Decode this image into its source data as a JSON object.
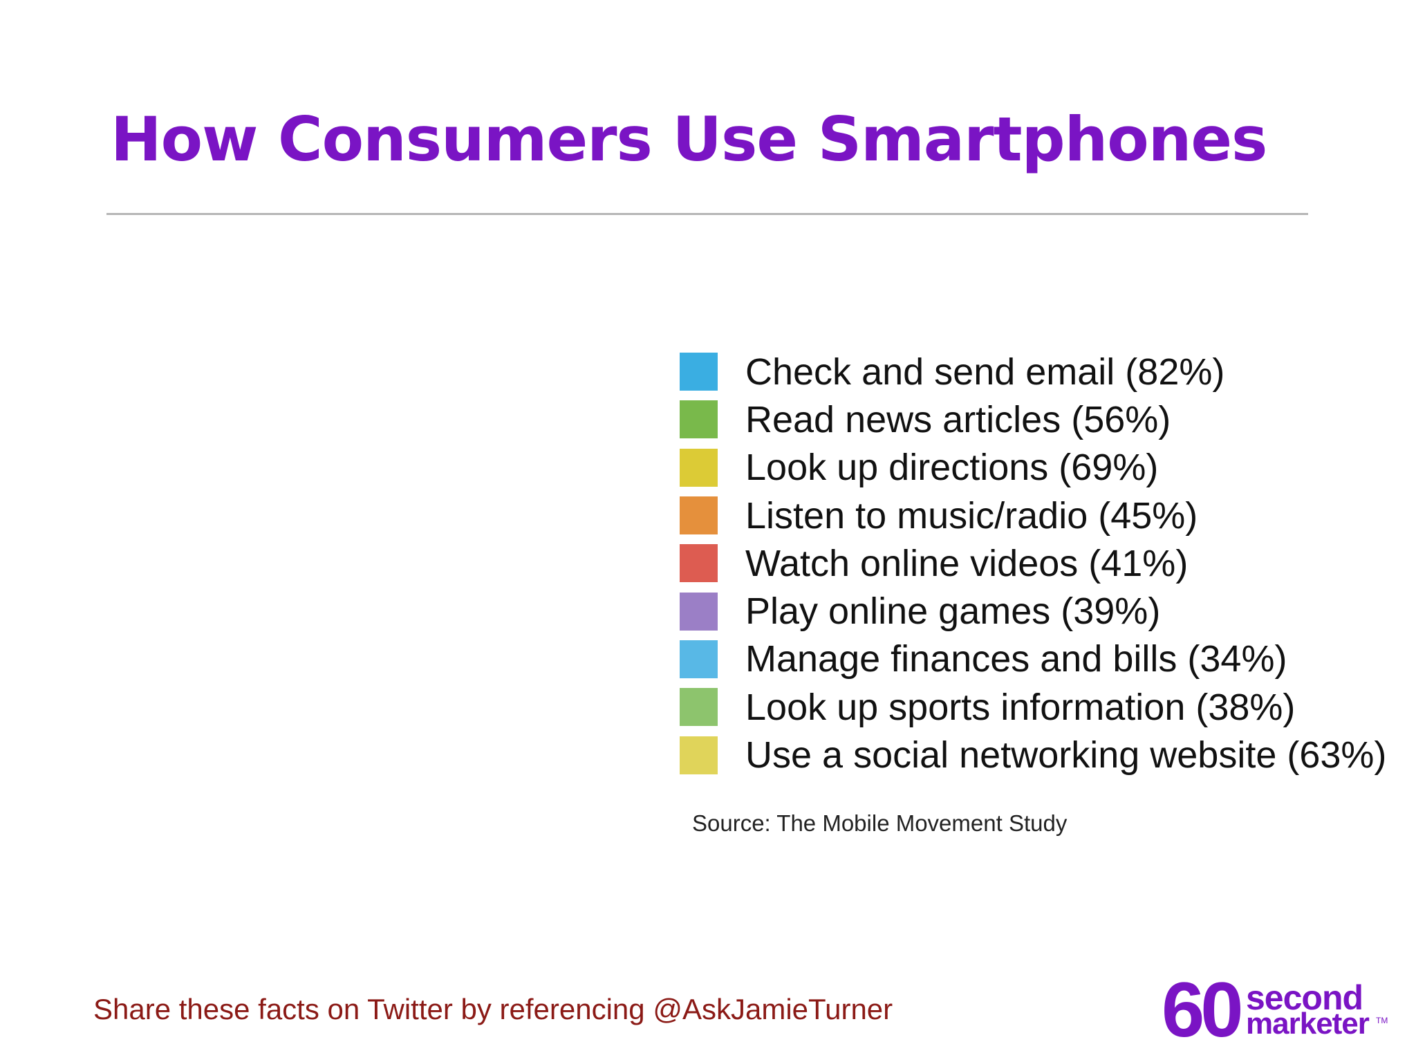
{
  "slide": {
    "title": "How Consumers Use Smartphones",
    "source": "Source: The Mobile Movement Study",
    "share_text": "Share these facts on Twitter by referencing @AskJamieTurner"
  },
  "logo": {
    "number": "60",
    "word1": "second",
    "word2": "marketer",
    "tm": "TM",
    "color": "#7a14c4"
  },
  "chart_data": {
    "type": "pie",
    "title": "How Consumers Use Smartphones",
    "categories": [
      "Check and send email",
      "Read news articles",
      "Look up directions",
      "Listen to music/radio",
      "Watch online videos",
      "Play online games",
      "Manage finances and bills",
      "Look up sports information",
      "Use a social networking website"
    ],
    "values": [
      82,
      56,
      69,
      45,
      41,
      39,
      34,
      38,
      63
    ],
    "unit": "%",
    "legend": "right",
    "colors": [
      "#3aaee2",
      "#79b94b",
      "#dccb36",
      "#e5903c",
      "#dd5c51",
      "#9b7fc6",
      "#58b8e6",
      "#8dc46d",
      "#e0d45a"
    ],
    "legend_labels": [
      "Check and send email (82%)",
      "Read news articles (56%)",
      "Look up directions (69%)",
      "Listen to music/radio (45%)",
      "Watch online videos (41%)",
      "Play online games (39%)",
      "Manage finances and bills (34%)",
      "Look up sports information (38%)",
      "Use a social networking website (63%)"
    ]
  }
}
